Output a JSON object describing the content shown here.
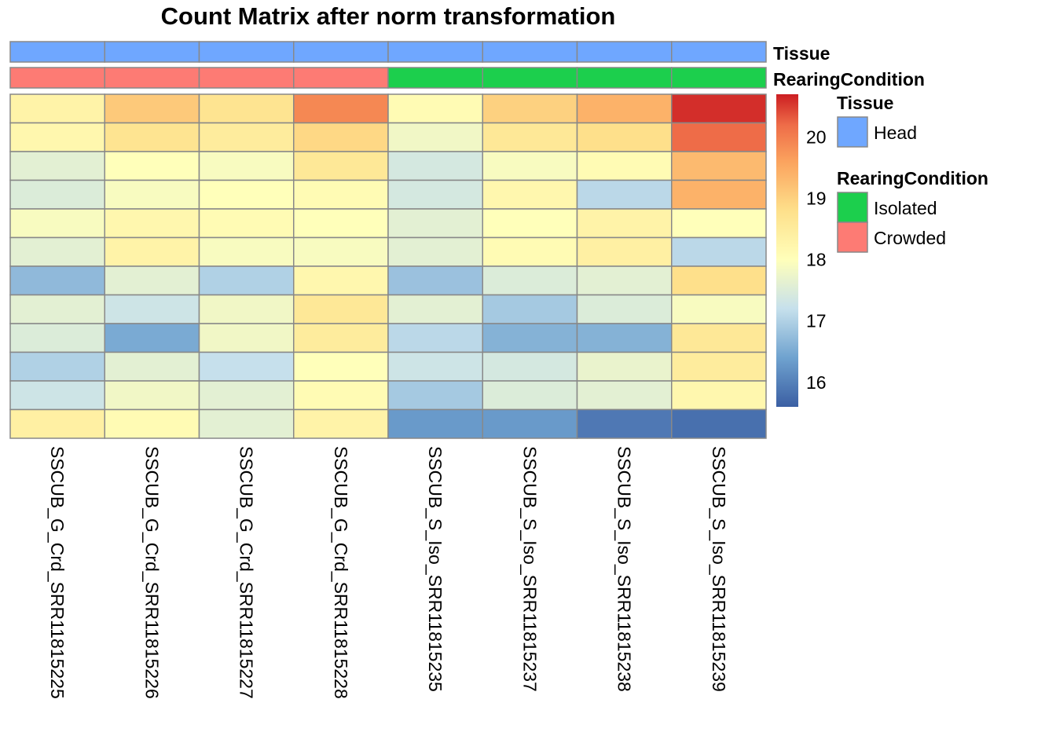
{
  "chart_data": {
    "type": "heatmap",
    "title": "Count Matrix after norm transformation",
    "columns": [
      "SSCUB_G_Crd_SRR11815225",
      "SSCUB_G_Crd_SRR11815226",
      "SSCUB_G_Crd_SRR11815227",
      "SSCUB_G_Crd_SRR11815228",
      "SSCUB_S_Iso_SRR11815235",
      "SSCUB_S_Iso_SRR11815237",
      "SSCUB_S_Iso_SRR11815238",
      "SSCUB_S_Iso_SRR11815239"
    ],
    "values": [
      [
        18.3,
        19.1,
        18.7,
        19.9,
        18.1,
        19.0,
        19.4,
        20.6
      ],
      [
        18.2,
        18.7,
        18.5,
        18.9,
        17.8,
        18.6,
        18.8,
        20.2
      ],
      [
        17.6,
        18.0,
        17.9,
        18.6,
        17.4,
        17.9,
        18.1,
        19.3
      ],
      [
        17.5,
        17.9,
        18.0,
        18.1,
        17.4,
        18.2,
        17.1,
        19.4
      ],
      [
        17.9,
        18.2,
        18.1,
        18.0,
        17.6,
        18.0,
        18.3,
        18.0
      ],
      [
        17.6,
        18.3,
        17.9,
        17.9,
        17.6,
        18.1,
        18.4,
        17.1
      ],
      [
        16.7,
        17.6,
        17.0,
        18.2,
        16.8,
        17.5,
        17.6,
        18.8
      ],
      [
        17.6,
        17.3,
        17.8,
        18.6,
        17.6,
        16.9,
        17.5,
        17.9
      ],
      [
        17.5,
        16.5,
        17.8,
        18.5,
        17.1,
        16.6,
        16.6,
        18.6
      ],
      [
        17.0,
        17.6,
        17.2,
        18.0,
        17.3,
        17.4,
        17.7,
        18.5
      ],
      [
        17.3,
        17.8,
        17.6,
        18.1,
        16.9,
        17.5,
        17.6,
        18.2
      ],
      [
        18.4,
        18.1,
        17.6,
        18.3,
        16.3,
        16.3,
        15.9,
        15.8
      ]
    ],
    "color_scale": {
      "min": 15.6,
      "max": 20.7,
      "stops": [
        {
          "value": 15.6,
          "color": "#3b5fa3"
        },
        {
          "value": 16.4,
          "color": "#6fa2cf"
        },
        {
          "value": 17.2,
          "color": "#c6e0ec"
        },
        {
          "value": 18.0,
          "color": "#ffffba"
        },
        {
          "value": 18.8,
          "color": "#fee08b"
        },
        {
          "value": 19.6,
          "color": "#fba35e"
        },
        {
          "value": 20.2,
          "color": "#ee6c48"
        },
        {
          "value": 20.7,
          "color": "#cc1e22"
        }
      ],
      "ticks": [
        16,
        17,
        18,
        19,
        20
      ]
    },
    "annotations": [
      {
        "name": "Tissue",
        "values": [
          "Head",
          "Head",
          "Head",
          "Head",
          "Head",
          "Head",
          "Head",
          "Head"
        ]
      },
      {
        "name": "RearingCondition",
        "values": [
          "Crowded",
          "Crowded",
          "Crowded",
          "Crowded",
          "Isolated",
          "Isolated",
          "Isolated",
          "Isolated"
        ]
      }
    ],
    "legends": [
      {
        "title": "Tissue",
        "items": [
          {
            "label": "Head",
            "color": "#6fa7ff"
          }
        ]
      },
      {
        "title": "RearingCondition",
        "items": [
          {
            "label": "Isolated",
            "color": "#1ccf4d"
          },
          {
            "label": "Crowded",
            "color": "#fd7b74"
          }
        ]
      }
    ],
    "cell_border_color": "#888888"
  }
}
